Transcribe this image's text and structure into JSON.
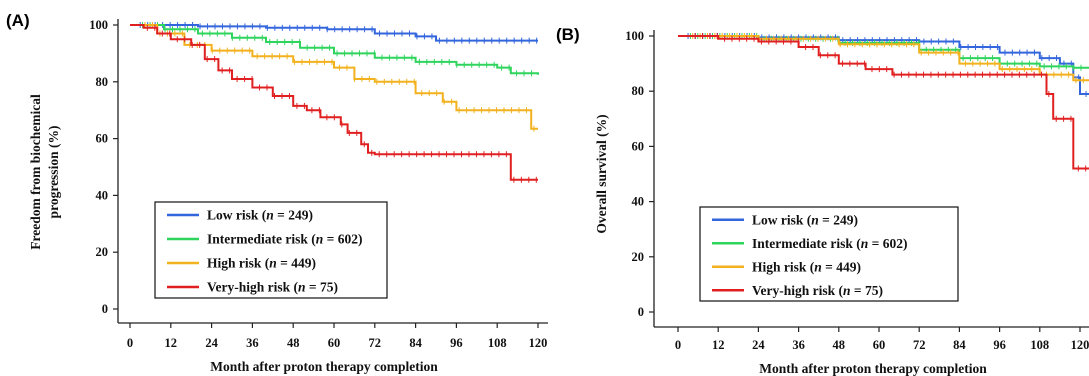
{
  "chart_data": [
    {
      "panel_label": "(A)",
      "type": "line",
      "xlabel": "Month after proton therapy completion",
      "ylabel_lines": [
        "Freedom from biochemical",
        "progression (%)"
      ],
      "xlim": [
        0,
        120
      ],
      "ylim": [
        0,
        100
      ],
      "xticks": [
        0,
        12,
        24,
        36,
        48,
        60,
        72,
        84,
        96,
        108,
        120
      ],
      "yticks": [
        0,
        20,
        40,
        60,
        80,
        100
      ],
      "legend_position": "bottom-left",
      "legend_labels": [
        {
          "prefix": "Low risk (",
          "n": "n",
          "suffix": " = 249)"
        },
        {
          "prefix": "Intermediate risk (",
          "n": "n",
          "suffix": " = 602)"
        },
        {
          "prefix": "High risk (",
          "n": "n",
          "suffix": " = 449)"
        },
        {
          "prefix": "Very-high risk (",
          "n": "n",
          "suffix": " = 75)"
        }
      ],
      "series": [
        {
          "name": "Low risk (n = 249)",
          "color": "#3366dd",
          "x": [
            0,
            20,
            40,
            58,
            72,
            84,
            90,
            120
          ],
          "y": [
            100,
            99.5,
            99,
            98.5,
            97,
            96,
            94.5,
            94.5
          ]
        },
        {
          "name": "Intermediate risk (n = 602)",
          "color": "#2fd45c",
          "x": [
            0,
            10,
            20,
            30,
            40,
            50,
            60,
            72,
            84,
            96,
            108,
            112,
            120
          ],
          "y": [
            100,
            98.5,
            97,
            95.5,
            94,
            92,
            90,
            88.5,
            87,
            86,
            85,
            83,
            82.5
          ]
        },
        {
          "name": "High risk (n = 449)",
          "color": "#f2b21f",
          "x": [
            0,
            8,
            16,
            24,
            36,
            48,
            60,
            66,
            72,
            84,
            92,
            96,
            108,
            116,
            118,
            120
          ],
          "y": [
            100,
            97,
            93,
            91,
            89,
            87,
            85,
            81,
            80,
            76,
            73,
            70,
            70,
            70,
            63.5,
            63.5
          ]
        },
        {
          "name": "Very-high risk (n = 75)",
          "color": "#e02020",
          "x": [
            0,
            4,
            8,
            12,
            18,
            22,
            26,
            30,
            36,
            42,
            48,
            52,
            56,
            62,
            64,
            68,
            70,
            72,
            84,
            96,
            110,
            112,
            120
          ],
          "y": [
            100,
            99,
            97,
            95,
            93,
            88,
            84,
            81,
            78,
            75,
            71.5,
            70,
            67.5,
            65,
            62,
            58,
            55,
            54.5,
            54.5,
            54.5,
            54.5,
            45.5,
            45.5
          ]
        }
      ]
    },
    {
      "panel_label": "(B)",
      "type": "line",
      "xlabel": "Month after proton therapy completion",
      "ylabel": "Overall survival (%)",
      "xlim": [
        0,
        120
      ],
      "ylim": [
        0,
        100
      ],
      "xticks": [
        0,
        12,
        24,
        36,
        48,
        60,
        72,
        84,
        96,
        108,
        120
      ],
      "yticks": [
        0,
        20,
        40,
        60,
        80,
        100
      ],
      "legend_position": "bottom-left",
      "legend_labels": [
        {
          "prefix": "Low risk (",
          "n": "n",
          "suffix": " = 249)"
        },
        {
          "prefix": "Intermediate risk (",
          "n": "n",
          "suffix": " = 602)"
        },
        {
          "prefix": "High risk (",
          "n": "n",
          "suffix": " = 449)"
        },
        {
          "prefix": "Very-high risk (",
          "n": "n",
          "suffix": " = 75)"
        }
      ],
      "series": [
        {
          "name": "Low risk (n = 249)",
          "color": "#3366dd",
          "x": [
            0,
            24,
            48,
            72,
            84,
            96,
            108,
            114,
            118,
            120,
            124
          ],
          "y": [
            100,
            99.5,
            98.5,
            98,
            96,
            94,
            92,
            90,
            85,
            79,
            79
          ]
        },
        {
          "name": "Intermediate risk (n = 602)",
          "color": "#2fd45c",
          "x": [
            0,
            24,
            48,
            72,
            84,
            96,
            108,
            118,
            124
          ],
          "y": [
            100,
            99,
            97.5,
            95,
            92,
            90,
            89,
            88.5,
            88.5
          ]
        },
        {
          "name": "High risk (n = 449)",
          "color": "#f2b21f",
          "x": [
            0,
            24,
            48,
            72,
            84,
            96,
            108,
            118,
            124
          ],
          "y": [
            100,
            99,
            97,
            94,
            90,
            88,
            86,
            84,
            84
          ]
        },
        {
          "name": "Very-high risk (n = 75)",
          "color": "#e02020",
          "x": [
            0,
            12,
            24,
            36,
            42,
            48,
            56,
            60,
            64,
            76,
            96,
            108,
            110,
            112,
            116,
            118,
            124
          ],
          "y": [
            100,
            99,
            98,
            96,
            93,
            90,
            88,
            88,
            86,
            86,
            86,
            86,
            79,
            70,
            70,
            52,
            52
          ]
        }
      ]
    }
  ]
}
